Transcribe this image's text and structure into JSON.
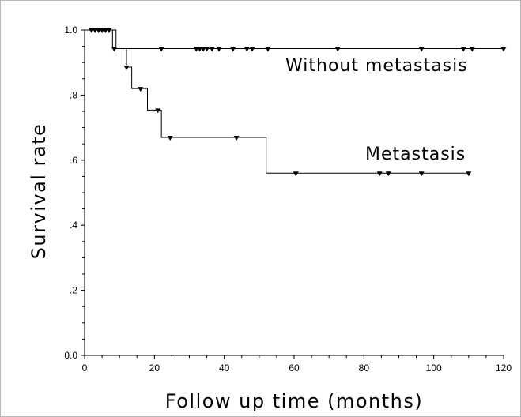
{
  "chart_data": {
    "type": "line",
    "chart_style": "kaplan-meier step curves with censor markers",
    "xlabel": "Follow up time (months)",
    "ylabel": "Survival rate",
    "xlim": [
      0,
      120
    ],
    "ylim": [
      0,
      1.0
    ],
    "x_ticks": [
      0,
      20,
      40,
      60,
      80,
      100,
      120
    ],
    "x_tick_labels": [
      "0",
      "20",
      "40",
      "60",
      "80",
      "100",
      "120"
    ],
    "y_ticks": [
      0,
      0.2,
      0.4,
      0.6,
      0.8,
      1.0
    ],
    "y_tick_labels": [
      "0.0",
      ".2",
      ".4",
      ".6",
      ".8",
      "1.0"
    ],
    "grid": false,
    "line_color": "#000000",
    "series": [
      {
        "name": "Without metastasis",
        "steps": [
          [
            0,
            1.0
          ],
          [
            9,
            0.943
          ],
          [
            120,
            0.943
          ]
        ],
        "censored": [
          {
            "x": 2,
            "y": 1.0
          },
          {
            "x": 3,
            "y": 1.0
          },
          {
            "x": 4,
            "y": 1.0
          },
          {
            "x": 5,
            "y": 1.0
          },
          {
            "x": 6,
            "y": 1.0
          },
          {
            "x": 7,
            "y": 1.0
          },
          {
            "x": 8.5,
            "y": 0.943
          },
          {
            "x": 22,
            "y": 0.943
          },
          {
            "x": 32,
            "y": 0.943
          },
          {
            "x": 33,
            "y": 0.943
          },
          {
            "x": 34,
            "y": 0.943
          },
          {
            "x": 35,
            "y": 0.943
          },
          {
            "x": 36.5,
            "y": 0.943
          },
          {
            "x": 38.5,
            "y": 0.943
          },
          {
            "x": 42.5,
            "y": 0.943
          },
          {
            "x": 46.5,
            "y": 0.943
          },
          {
            "x": 48,
            "y": 0.943
          },
          {
            "x": 52.5,
            "y": 0.943
          },
          {
            "x": 72.5,
            "y": 0.943
          },
          {
            "x": 96.5,
            "y": 0.943
          },
          {
            "x": 108.5,
            "y": 0.943
          },
          {
            "x": 111,
            "y": 0.943
          },
          {
            "x": 120,
            "y": 0.943
          }
        ]
      },
      {
        "name": "Metastasis",
        "steps": [
          [
            0,
            1.0
          ],
          [
            8,
            0.943
          ],
          [
            12,
            0.886
          ],
          [
            13.5,
            0.82
          ],
          [
            18,
            0.754
          ],
          [
            22,
            0.67
          ],
          [
            52,
            0.56
          ],
          [
            110,
            0.56
          ]
        ],
        "censored": [
          {
            "x": 12,
            "y": 0.886
          },
          {
            "x": 16,
            "y": 0.82
          },
          {
            "x": 21,
            "y": 0.754
          },
          {
            "x": 24.5,
            "y": 0.67
          },
          {
            "x": 43.5,
            "y": 0.67
          },
          {
            "x": 60.5,
            "y": 0.56
          },
          {
            "x": 84.5,
            "y": 0.56
          },
          {
            "x": 87,
            "y": 0.56
          },
          {
            "x": 96.5,
            "y": 0.56
          },
          {
            "x": 110,
            "y": 0.56
          }
        ]
      }
    ]
  }
}
